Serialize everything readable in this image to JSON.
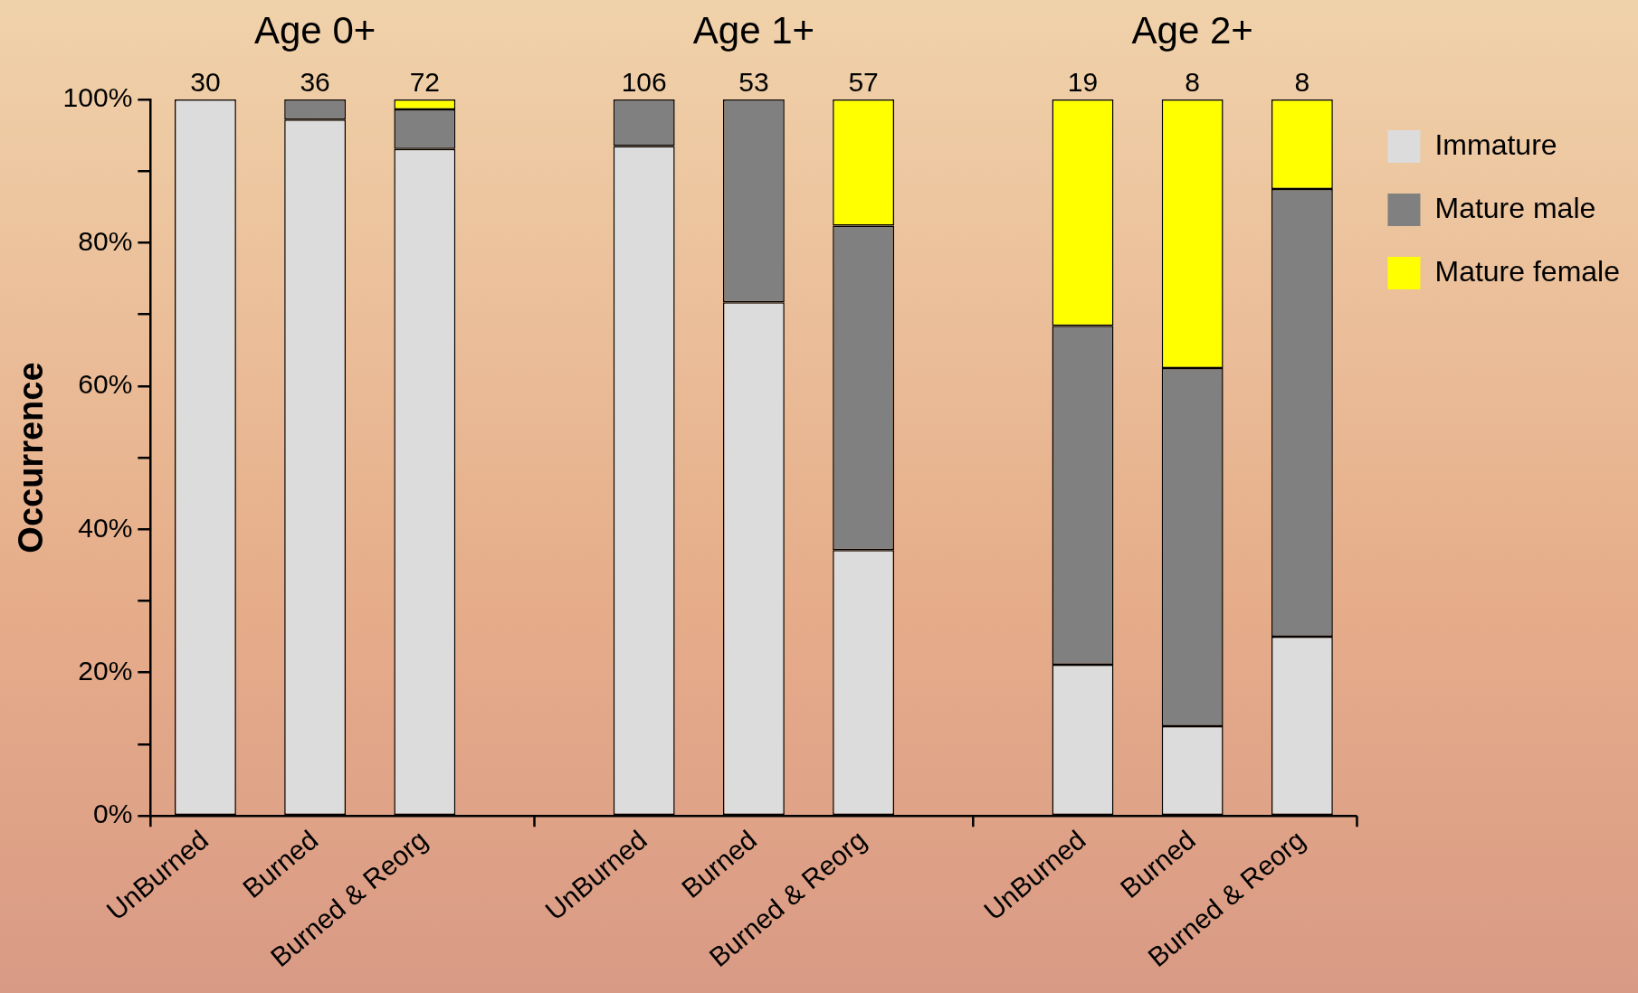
{
  "chart_data": {
    "type": "bar",
    "stacked": true,
    "ylabel": "Occurrence",
    "categories": [
      "UnBurned",
      "Burned",
      "Burned & Reorg",
      null,
      "UnBurned",
      "Burned",
      "Burned & Reorg",
      null,
      "UnBurned",
      "Burned",
      "Burned & Reorg"
    ],
    "series": [
      {
        "name": "Immature",
        "color": "#dcdcdc",
        "values": [
          100,
          97.2,
          93.1,
          null,
          93.5,
          71.7,
          37.1,
          null,
          21.1,
          12.5,
          25
        ]
      },
      {
        "name": "Mature male",
        "color": "#808080",
        "values": [
          0,
          2.8,
          5.5,
          null,
          6.5,
          28.3,
          45.3,
          null,
          47.3,
          50,
          62.5
        ]
      },
      {
        "name": "Mature female",
        "color": "#ffff00",
        "values": [
          0,
          0,
          1.4,
          null,
          0,
          0,
          17.6,
          null,
          31.6,
          37.5,
          12.5
        ]
      }
    ],
    "annotations": [
      "Age 0+",
      "Age 1+",
      "Age 2+",
      "30",
      "36",
      "72",
      "106",
      "53",
      "57",
      "19",
      "8",
      "8"
    ],
    "ylim": [
      0,
      100
    ],
    "yticks": [
      {
        "value": 0,
        "label": "0%"
      },
      {
        "value": 10,
        "label": null
      },
      {
        "value": 20,
        "label": "20%"
      },
      {
        "value": 30,
        "label": null
      },
      {
        "value": 40,
        "label": "40%"
      },
      {
        "value": 50,
        "label": null
      },
      {
        "value": 60,
        "label": "60%"
      },
      {
        "value": 70,
        "label": null
      },
      {
        "value": 80,
        "label": "80%"
      },
      {
        "value": 90,
        "label": null
      },
      {
        "value": 100,
        "label": "100%"
      }
    ],
    "legend": "right",
    "grid": false
  }
}
